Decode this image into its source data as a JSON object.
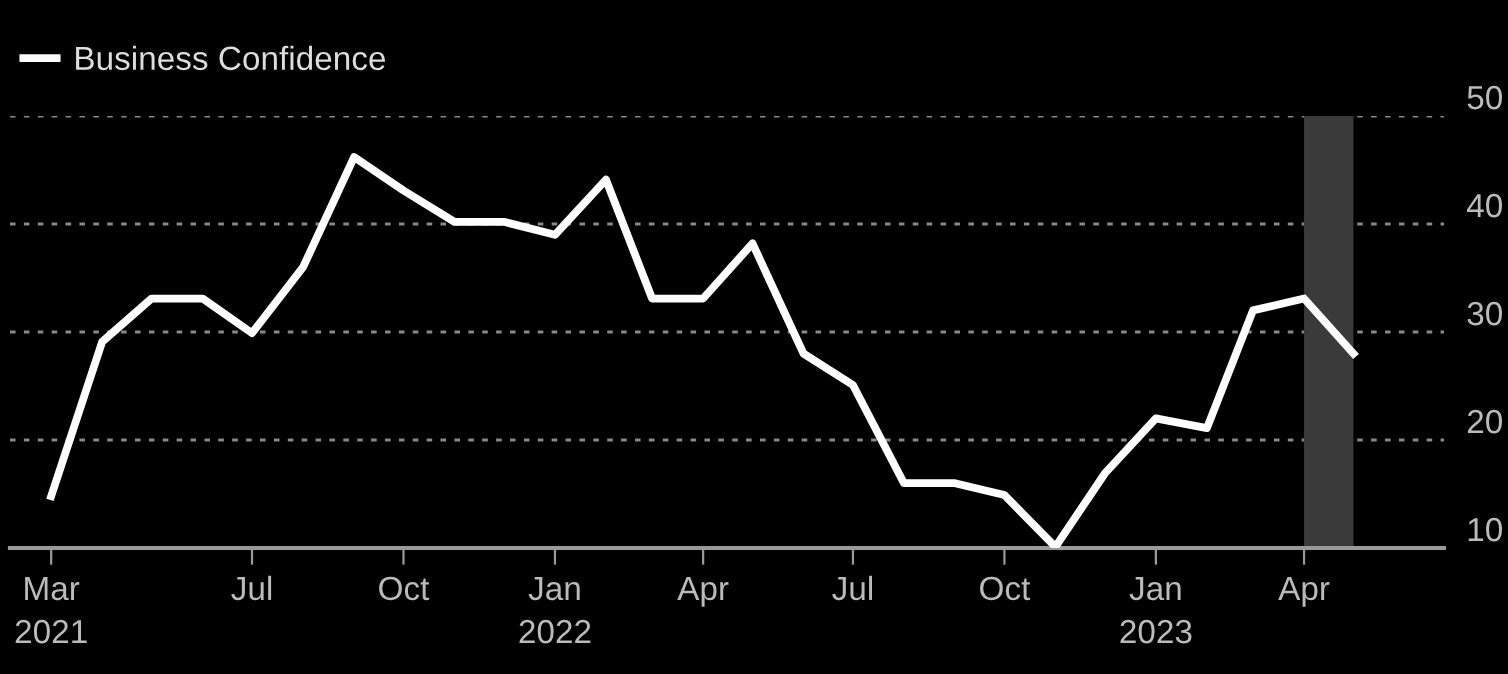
{
  "chart_data": {
    "type": "line",
    "legend": "top left",
    "grid": "y",
    "marker": "none",
    "line_style": "solid",
    "x": [
      "2021-03",
      "2021-04",
      "2021-05",
      "2021-06",
      "2021-07",
      "2021-08",
      "2021-09",
      "2021-10",
      "2021-11",
      "2021-12",
      "2022-01",
      "2022-02",
      "2022-03",
      "2022-04",
      "2022-05",
      "2022-06",
      "2022-07",
      "2022-08",
      "2022-09",
      "2022-10",
      "2022-11",
      "2022-12",
      "2023-01",
      "2023-02",
      "2023-03",
      "2023-04",
      "2023-05"
    ],
    "series": [
      {
        "name": "Business Confidence",
        "color": "#ffffff",
        "values": [
          14.8,
          29.1,
          33.1,
          33.1,
          29.9,
          36.0,
          46.2,
          43.1,
          40.2,
          40.2,
          39.0,
          44.1,
          33.1,
          33.1,
          38.2,
          28.0,
          25.1,
          16.0,
          16.0,
          14.9,
          10.1,
          16.9,
          22.0,
          21.1,
          32.0,
          33.1,
          28.0
        ]
      }
    ],
    "xlim": [
      "2021-02-04",
      "2023-06-25"
    ],
    "xticks": [
      {
        "value": "2021-03",
        "label": "Mar\n2021"
      },
      {
        "value": "2021-07",
        "label": "Jul"
      },
      {
        "value": "2021-10",
        "label": "Oct"
      },
      {
        "value": "2022-01",
        "label": "Jan\n2022"
      },
      {
        "value": "2022-04",
        "label": "Apr"
      },
      {
        "value": "2022-07",
        "label": "Jul"
      },
      {
        "value": "2022-10",
        "label": "Oct"
      },
      {
        "value": "2023-01",
        "label": "Jan\n2023"
      },
      {
        "value": "2023-04",
        "label": "Apr"
      }
    ],
    "ylim": [
      10,
      50
    ],
    "yticks": [
      10,
      20,
      30,
      40,
      50
    ],
    "bands": [
      {
        "axis": "x",
        "from": "2023-04",
        "to": "2023-05",
        "color": "#3a3a3a"
      }
    ]
  }
}
